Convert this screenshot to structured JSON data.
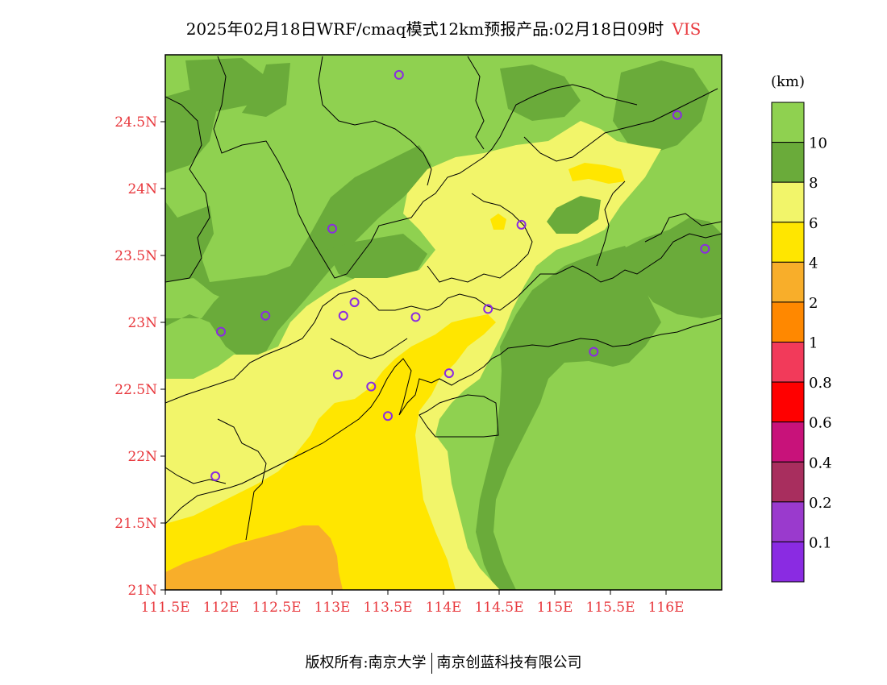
{
  "header": {
    "title": "2025年02月18日WRF/cmaq模式12km预报产品:02月18日09时",
    "variable": "VIS"
  },
  "map": {
    "lon_range": [
      111.5,
      116.5
    ],
    "lat_range": [
      21,
      25
    ],
    "lon_ticks": [
      "111.5E",
      "112E",
      "112.5E",
      "113E",
      "113.5E",
      "114E",
      "114.5E",
      "115E",
      "115.5E",
      "116E"
    ],
    "lat_ticks": [
      "21N",
      "21.5N",
      "22N",
      "22.5N",
      "23N",
      "23.5N",
      "24N",
      "24.5N"
    ],
    "stations": [
      {
        "lon": 113.6,
        "lat": 24.85
      },
      {
        "lon": 116.1,
        "lat": 24.55
      },
      {
        "lon": 113.0,
        "lat": 23.7
      },
      {
        "lon": 114.7,
        "lat": 23.73
      },
      {
        "lon": 116.35,
        "lat": 23.55
      },
      {
        "lon": 113.2,
        "lat": 23.15
      },
      {
        "lon": 112.4,
        "lat": 23.05
      },
      {
        "lon": 113.1,
        "lat": 23.05
      },
      {
        "lon": 113.75,
        "lat": 23.04
      },
      {
        "lon": 114.4,
        "lat": 23.1
      },
      {
        "lon": 112.0,
        "lat": 22.93
      },
      {
        "lon": 115.35,
        "lat": 22.78
      },
      {
        "lon": 113.05,
        "lat": 22.61
      },
      {
        "lon": 114.05,
        "lat": 22.62
      },
      {
        "lon": 113.35,
        "lat": 22.52
      },
      {
        "lon": 113.5,
        "lat": 22.3
      },
      {
        "lon": 111.95,
        "lat": 21.85
      }
    ]
  },
  "colorbar": {
    "unit": "(km)",
    "labels": [
      "10",
      "8",
      "6",
      "4",
      "2",
      "1",
      "0.8",
      "0.6",
      "0.4",
      "0.2",
      "0.1"
    ],
    "colors": [
      "#8fd150",
      "#6aab3a",
      "#f2f56a",
      "#ffe600",
      "#f8ae2a",
      "#ff8800",
      "#f23a5a",
      "#ff0000",
      "#c8127a",
      "#a82e5e",
      "#9a3acd",
      "#8a2be2"
    ]
  },
  "footer": {
    "left": "版权所有:南京大学",
    "right": "南京创蓝科技有限公司"
  }
}
